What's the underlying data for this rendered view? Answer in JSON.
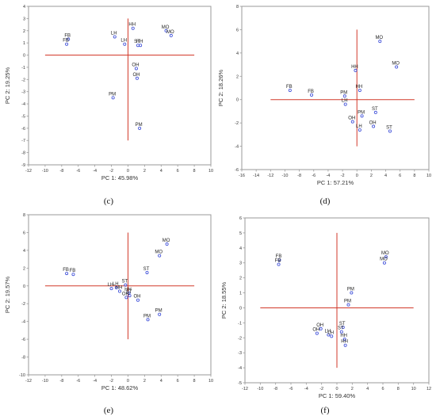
{
  "colors": {
    "axis_cross": "#d23a2a",
    "point": "#3a4bd8",
    "frame": "#9a9a9a"
  },
  "chart_data": [
    {
      "type": "scatter",
      "panel_label": "(c)",
      "xlabel": "PC 1: 45.98%",
      "ylabel": "PC 2: 19.25%",
      "xlim": [
        -12,
        10
      ],
      "ylim": [
        -9,
        4
      ],
      "xticks": [
        -12,
        -10,
        -8,
        -6,
        -4,
        -2,
        0,
        2,
        4,
        6,
        8,
        10
      ],
      "yticks": [
        -9,
        -8,
        -7,
        -6,
        -5,
        -4,
        -3,
        -2,
        -1,
        0,
        1,
        2,
        3,
        4
      ],
      "axis_cross": {
        "x": [
          -10,
          8
        ],
        "y": [
          -7,
          3
        ]
      },
      "points": [
        {
          "label": "FB",
          "x": -7.2,
          "y": 1.3
        },
        {
          "label": "FB",
          "x": -7.4,
          "y": 0.9
        },
        {
          "label": "LH",
          "x": -1.6,
          "y": 1.5
        },
        {
          "label": "LH",
          "x": -0.4,
          "y": 0.9
        },
        {
          "label": "HH",
          "x": 0.6,
          "y": 2.2
        },
        {
          "label": "ST",
          "x": 1.2,
          "y": 0.8
        },
        {
          "label": "HH",
          "x": 1.5,
          "y": 0.8
        },
        {
          "label": "MO",
          "x": 4.6,
          "y": 2.0
        },
        {
          "label": "MO",
          "x": 5.2,
          "y": 1.6
        },
        {
          "label": "OH",
          "x": 1.0,
          "y": -1.1
        },
        {
          "label": "OH",
          "x": 1.1,
          "y": -1.9
        },
        {
          "label": "PM",
          "x": -1.8,
          "y": -3.5
        },
        {
          "label": "PM",
          "x": 1.4,
          "y": -6.0
        }
      ]
    },
    {
      "type": "scatter",
      "panel_label": "(d)",
      "xlabel": "PC 1: 57.21%",
      "ylabel": "PC 2: 18.26%",
      "xlim": [
        -16,
        10
      ],
      "ylim": [
        -6,
        8
      ],
      "xticks": [
        -16,
        -14,
        -12,
        -10,
        -8,
        -6,
        -4,
        -2,
        0,
        2,
        4,
        6,
        8,
        10
      ],
      "yticks": [
        -6,
        -4,
        -2,
        0,
        2,
        4,
        6,
        8
      ],
      "axis_cross": {
        "x": [
          -12,
          8
        ],
        "y": [
          -4,
          6
        ]
      },
      "points": [
        {
          "label": "FB",
          "x": -9.3,
          "y": 0.8
        },
        {
          "label": "FB",
          "x": -6.3,
          "y": 0.4
        },
        {
          "label": "PM",
          "x": -1.7,
          "y": 0.3
        },
        {
          "label": "LH",
          "x": -1.6,
          "y": -0.4
        },
        {
          "label": "HH",
          "x": -0.2,
          "y": 2.5
        },
        {
          "label": "HH",
          "x": 0.4,
          "y": 0.8
        },
        {
          "label": "PM",
          "x": 0.7,
          "y": -1.4
        },
        {
          "label": "ST",
          "x": 2.6,
          "y": -1.1
        },
        {
          "label": "OH",
          "x": -0.6,
          "y": -1.9
        },
        {
          "label": "LH",
          "x": 0.4,
          "y": -2.6
        },
        {
          "label": "OH",
          "x": 2.3,
          "y": -2.3
        },
        {
          "label": "ST",
          "x": 4.6,
          "y": -2.7
        },
        {
          "label": "MO",
          "x": 3.2,
          "y": 5.0
        },
        {
          "label": "MO",
          "x": 5.5,
          "y": 2.8
        }
      ]
    },
    {
      "type": "scatter",
      "panel_label": "(e)",
      "xlabel": "PC 1: 48.62%",
      "ylabel": "PC 2: 19.57%",
      "xlim": [
        -12,
        10
      ],
      "ylim": [
        -10,
        8
      ],
      "xticks": [
        -12,
        -10,
        -8,
        -6,
        -4,
        -2,
        0,
        2,
        4,
        6,
        8,
        10
      ],
      "yticks": [
        -10,
        -8,
        -6,
        -4,
        -2,
        0,
        2,
        4,
        6,
        8
      ],
      "axis_cross": {
        "x": [
          -10,
          8
        ],
        "y": [
          -6,
          6
        ]
      },
      "points": [
        {
          "label": "FB",
          "x": -7.4,
          "y": 1.4
        },
        {
          "label": "FB",
          "x": -6.6,
          "y": 1.3
        },
        {
          "label": "LH",
          "x": -2.0,
          "y": -0.3
        },
        {
          "label": "LH",
          "x": -1.4,
          "y": -0.2
        },
        {
          "label": "HH",
          "x": -1.0,
          "y": -0.6
        },
        {
          "label": "ST",
          "x": -0.3,
          "y": 0.1
        },
        {
          "label": "HH",
          "x": 0.1,
          "y": -0.8
        },
        {
          "label": "ST",
          "x": 0.2,
          "y": -1.1
        },
        {
          "label": "OH",
          "x": -0.2,
          "y": -1.3
        },
        {
          "label": "OH",
          "x": 1.2,
          "y": -1.6
        },
        {
          "label": "ST",
          "x": 2.3,
          "y": 1.5
        },
        {
          "label": "MO",
          "x": 3.8,
          "y": 3.4
        },
        {
          "label": "MO",
          "x": 4.7,
          "y": 4.7
        },
        {
          "label": "PM",
          "x": 2.4,
          "y": -3.8
        },
        {
          "label": "PM",
          "x": 3.8,
          "y": -3.2
        }
      ]
    },
    {
      "type": "scatter",
      "panel_label": "(f)",
      "xlabel": "PC 1: 59.40%",
      "ylabel": "PC 2: 18.55%",
      "xlim": [
        -12,
        12
      ],
      "ylim": [
        -5,
        6
      ],
      "xticks": [
        -12,
        -10,
        -8,
        -6,
        -4,
        -2,
        0,
        2,
        4,
        6,
        8,
        10,
        12
      ],
      "yticks": [
        -5,
        -4,
        -3,
        -2,
        -1,
        0,
        1,
        2,
        3,
        4,
        5,
        6
      ],
      "axis_cross": {
        "x": [
          -10,
          10
        ],
        "y": [
          -4,
          5
        ]
      },
      "points": [
        {
          "label": "FB",
          "x": -7.5,
          "y": 3.2
        },
        {
          "label": "FB",
          "x": -7.6,
          "y": 2.9
        },
        {
          "label": "MO",
          "x": 6.4,
          "y": 3.4
        },
        {
          "label": "MO",
          "x": 6.2,
          "y": 3.0
        },
        {
          "label": "PM",
          "x": 1.9,
          "y": 1.0
        },
        {
          "label": "PM",
          "x": 1.5,
          "y": 0.2
        },
        {
          "label": "OH",
          "x": -2.1,
          "y": -1.4
        },
        {
          "label": "OH",
          "x": -2.6,
          "y": -1.7
        },
        {
          "label": "LH",
          "x": -1.1,
          "y": -1.8
        },
        {
          "label": "LH",
          "x": -0.7,
          "y": -1.9
        },
        {
          "label": "ST",
          "x": 0.8,
          "y": -1.3
        },
        {
          "label": "ST",
          "x": 0.6,
          "y": -1.6
        },
        {
          "label": "HH",
          "x": 1.0,
          "y": -2.1
        },
        {
          "label": "HH",
          "x": 1.1,
          "y": -2.5
        }
      ]
    }
  ]
}
